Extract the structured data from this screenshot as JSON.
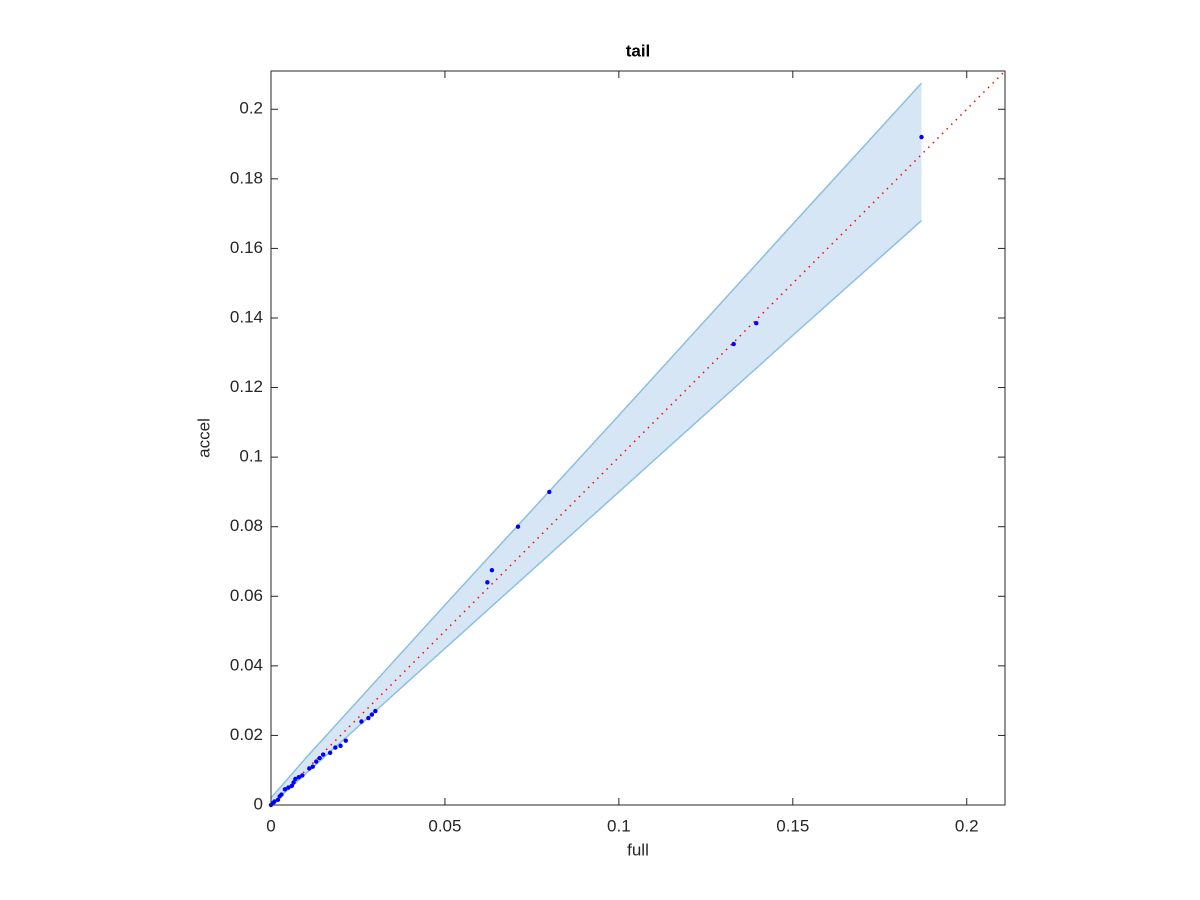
{
  "chart_data": {
    "type": "scatter",
    "title": "tail",
    "xlabel": "full",
    "ylabel": "accel",
    "xlim": [
      0,
      0.211
    ],
    "ylim": [
      0,
      0.211
    ],
    "xticks": [
      0,
      0.05,
      0.1,
      0.15,
      0.2
    ],
    "yticks": [
      0,
      0.02,
      0.04,
      0.06,
      0.08,
      0.1,
      0.12,
      0.14,
      0.16,
      0.18,
      0.2
    ],
    "band": {
      "color": "#d6e6f4",
      "edge_color": "#8cbfe0",
      "x": [
        0,
        0.01,
        0.05,
        0.1,
        0.15,
        0.187
      ],
      "lower": [
        0,
        0.009,
        0.045,
        0.09,
        0.135,
        0.168
      ],
      "upper": [
        0.002,
        0.0135,
        0.0575,
        0.112,
        0.167,
        0.2075
      ]
    },
    "reference_line": {
      "color": "#ff0000",
      "x": [
        0,
        0.211
      ],
      "y": [
        0,
        0.211
      ]
    },
    "points": {
      "color": "#0000ff",
      "x": [
        0.187,
        0.1395,
        0.133,
        0.08,
        0.071,
        0.0635,
        0.0622,
        0.03,
        0.029,
        0.028,
        0.026,
        0.0215,
        0.02,
        0.0185,
        0.017,
        0.015,
        0.014,
        0.013,
        0.012,
        0.011,
        0.009,
        0.008,
        0.007,
        0.0065,
        0.006,
        0.005,
        0.004,
        0.003,
        0.0025,
        0.002,
        0.001,
        0.0005,
        0
      ],
      "y": [
        0.192,
        0.1385,
        0.1325,
        0.09,
        0.08,
        0.0675,
        0.064,
        0.027,
        0.026,
        0.025,
        0.024,
        0.0185,
        0.017,
        0.0165,
        0.015,
        0.0145,
        0.0135,
        0.0125,
        0.011,
        0.0105,
        0.0085,
        0.008,
        0.0075,
        0.0065,
        0.0055,
        0.005,
        0.0045,
        0.003,
        0.0025,
        0.0015,
        0.001,
        0.0005,
        0
      ]
    }
  }
}
